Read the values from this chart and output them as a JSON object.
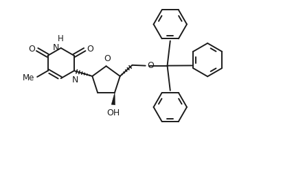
{
  "background_color": "#ffffff",
  "line_color": "#1a1a1a",
  "line_width": 1.4,
  "fig_width": 4.28,
  "fig_height": 2.49,
  "dpi": 100,
  "xlim": [
    0,
    10
  ],
  "ylim": [
    0,
    5.83
  ]
}
